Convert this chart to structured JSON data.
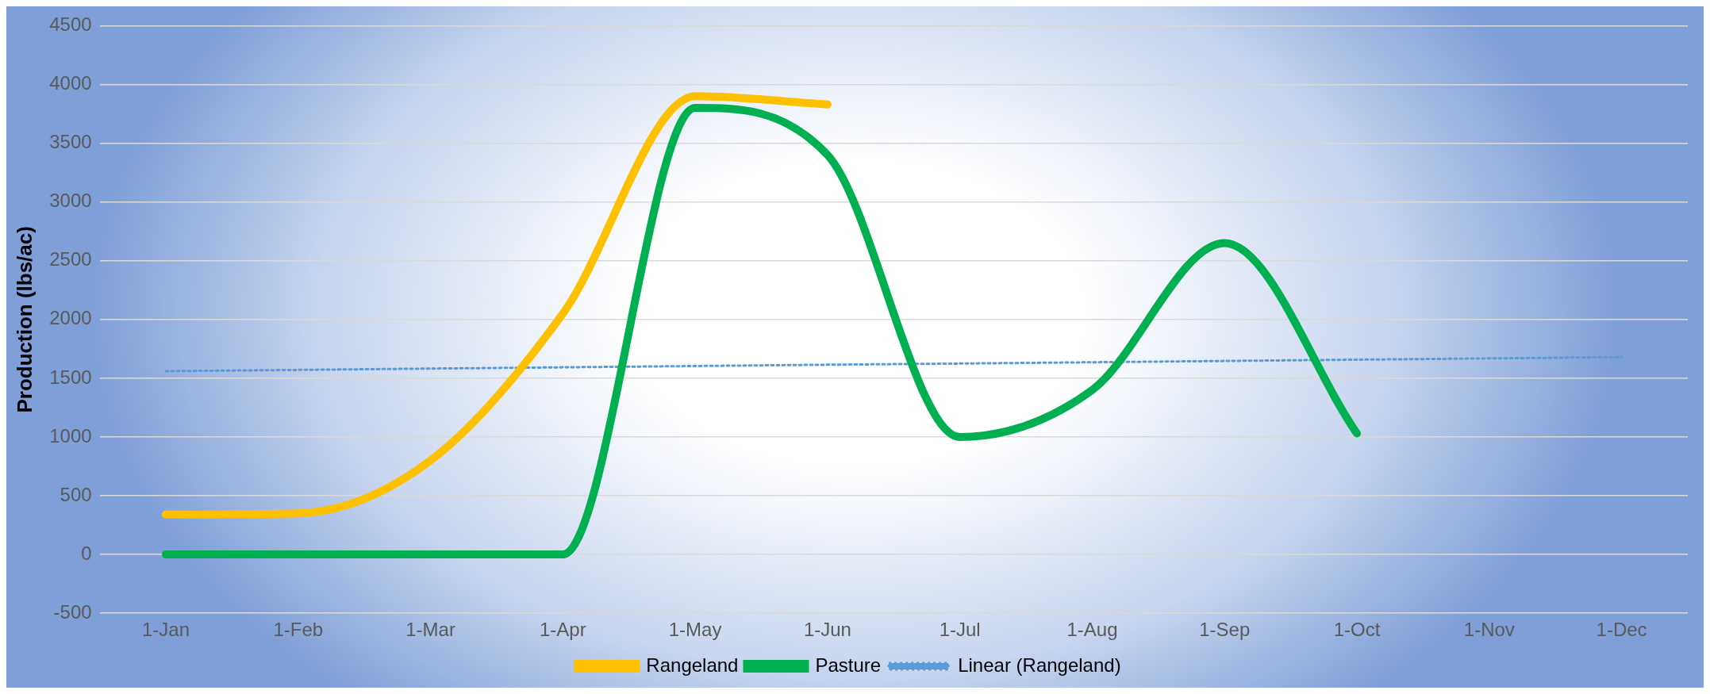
{
  "chart_data": {
    "type": "line",
    "ylabel": "Production (lbs/ac)",
    "categories": [
      "1-Jan",
      "1-Feb",
      "1-Mar",
      "1-Apr",
      "1-May",
      "1-Jun",
      "1-Jul",
      "1-Aug",
      "1-Sep",
      "1-Oct",
      "1-Nov",
      "1-Dec"
    ],
    "series": [
      {
        "name": "Rangeland",
        "color": "#ffc000",
        "values": [
          340,
          350,
          800,
          2050,
          3900,
          3830,
          null,
          null,
          null,
          null,
          null,
          null
        ]
      },
      {
        "name": "Pasture",
        "color": "#00b050",
        "values": [
          0,
          0,
          0,
          0,
          3800,
          3400,
          1000,
          1400,
          2650,
          1030,
          null,
          null
        ]
      },
      {
        "name": "Linear (Rangeland)",
        "color": "#5b9bd5",
        "line_style": "dotted",
        "values": [
          1560,
          1571,
          1582,
          1593,
          1604,
          1615,
          1625,
          1636,
          1647,
          1658,
          1669,
          1680
        ]
      }
    ],
    "ylim": [
      -500,
      4500
    ],
    "yticks": [
      -500,
      0,
      500,
      1000,
      1500,
      2000,
      2500,
      3000,
      3500,
      4000,
      4500
    ],
    "grid": "y",
    "legend": "bottom",
    "marker": "none"
  }
}
